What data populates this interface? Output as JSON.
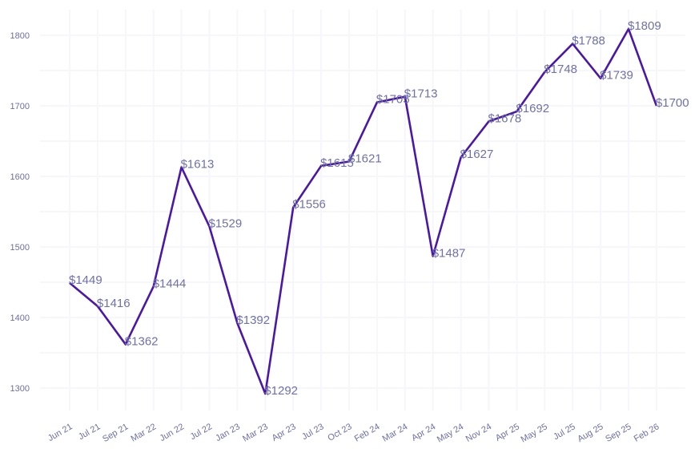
{
  "chart_data": {
    "type": "line",
    "title": "",
    "xlabel": "",
    "ylabel": "",
    "ylim": [
      1265,
      1830
    ],
    "yticks": [
      1300,
      1400,
      1500,
      1600,
      1700,
      1800
    ],
    "grid": true,
    "legend": null,
    "line_color": "#4a17a8",
    "label_color": "#6e72a8",
    "label_prefix": "$",
    "categories": [
      "Jun 21",
      "Jul 21",
      "Sep 21",
      "Mar 22",
      "Jun 22",
      "Jul 22",
      "Jan 23",
      "Mar 23",
      "Apr 23",
      "Jul 23",
      "Oct 23",
      "Feb 24",
      "Mar 24",
      "Apr 24",
      "May 24",
      "Nov 24",
      "Apr 25",
      "May 25",
      "Jul 25",
      "Aug 25",
      "Sep 25",
      "Feb 26"
    ],
    "values": [
      1449,
      1416,
      1362,
      1444,
      1613,
      1529,
      1392,
      1292,
      1556,
      1615,
      1621,
      1705,
      1713,
      1487,
      1627,
      1678,
      1692,
      1748,
      1788,
      1739,
      1809,
      1700
    ],
    "data_labels": [
      "$1449",
      "$1416",
      "$1362",
      "$1444",
      "$1613",
      "$1529",
      "$1392",
      "$1292",
      "$1556",
      "$1615",
      "$1621",
      "$1705",
      "$1713",
      "$1487",
      "$1627",
      "$1678",
      "$1692",
      "$1748",
      "$1788",
      "$1739",
      "$1809",
      "$1700"
    ]
  }
}
